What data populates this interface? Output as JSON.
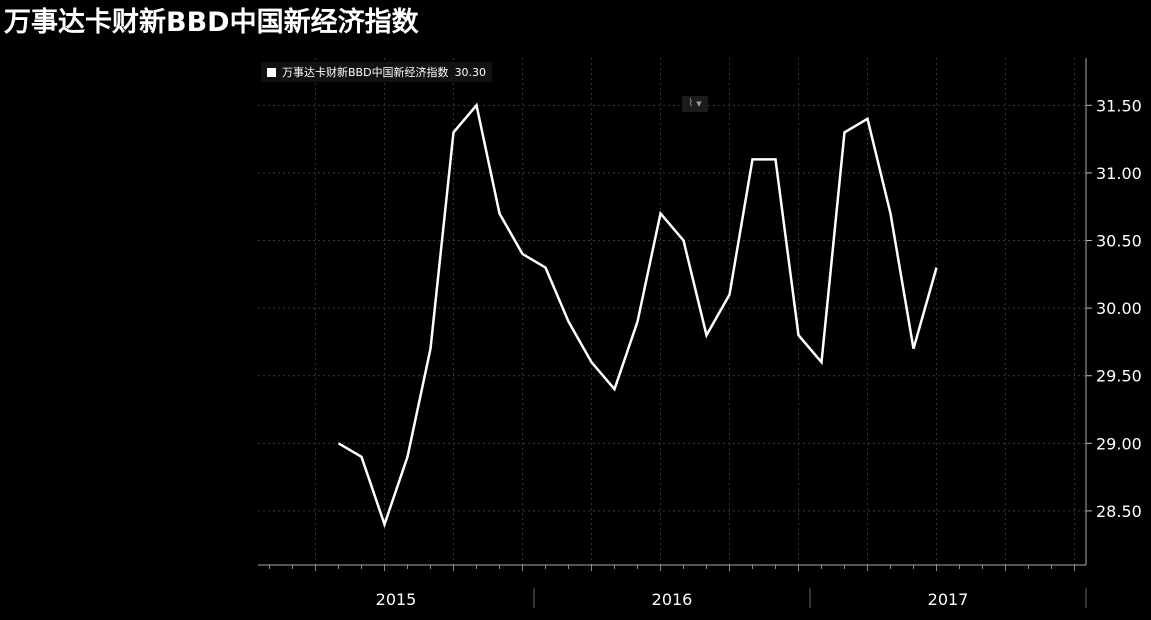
{
  "chart_data": {
    "type": "line",
    "title": "万事达卡财新BBD中国新经济指数",
    "legend": {
      "label": "万事达卡财新BBD中国新经济指数",
      "last_value": "30.30"
    },
    "x_tick_labels": [
      "2015",
      "2016",
      "2017"
    ],
    "y_tick_labels": [
      "28.50",
      "29.00",
      "29.50",
      "30.00",
      "30.50",
      "31.00",
      "31.50"
    ],
    "ylim": [
      28.1,
      31.85
    ],
    "y_ticks": [
      28.5,
      29.0,
      29.5,
      30.0,
      30.5,
      31.0,
      31.5
    ],
    "x_start": "2015-01",
    "x_end": "2017-12",
    "grid": true,
    "series": [
      {
        "name": "万事达卡财新BBD中国新经济指数",
        "color": "#ffffff",
        "x": [
          "2015-04",
          "2015-05",
          "2015-06",
          "2015-07",
          "2015-08",
          "2015-09",
          "2015-10",
          "2015-11",
          "2015-12",
          "2016-01",
          "2016-02",
          "2016-03",
          "2016-04",
          "2016-05",
          "2016-06",
          "2016-07",
          "2016-08",
          "2016-09",
          "2016-10",
          "2016-11",
          "2016-12",
          "2017-01",
          "2017-02",
          "2017-03",
          "2017-04",
          "2017-05",
          "2017-06",
          "2017-07",
          "2017-08",
          "2017-09"
        ],
        "values": [
          29.0,
          28.9,
          28.4,
          28.9,
          29.7,
          31.3,
          31.5,
          30.7,
          30.4,
          30.3,
          29.9,
          29.6,
          29.4,
          29.9,
          30.7,
          30.5,
          29.8,
          30.1,
          31.1,
          31.1,
          29.8,
          29.6,
          31.3,
          31.4,
          30.7,
          29.7,
          30.3,
          null,
          null,
          null
        ]
      }
    ]
  },
  "toolbar": {
    "icon": "line-chart-icon",
    "caret": "chevron-down-icon"
  }
}
